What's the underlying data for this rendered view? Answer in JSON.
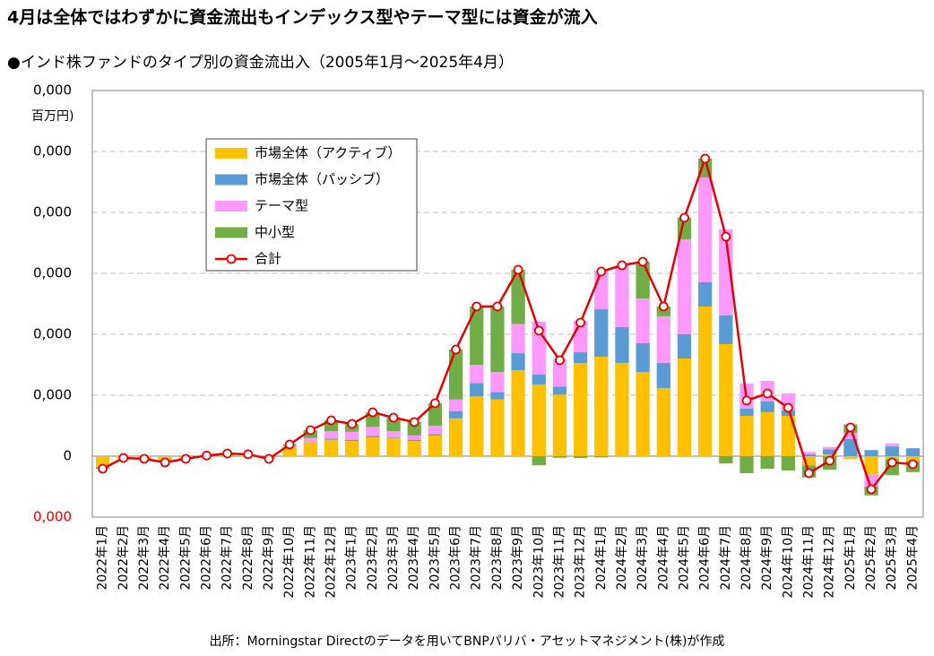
{
  "chart_data": {
    "type": "bar",
    "stacked": true,
    "title": "4月は全体ではわずかに資金流出もインデックス型やテーマ型には資金が流入",
    "subtitle": "●インド株ファンドのタイプ別の資金流出入（2005年1月～2025年4月）",
    "y_unit": "百万円)",
    "source": "出所：Morningstar Directのデータを用いてBNPパリバ・アセットマネジメント(株)が作成",
    "categories": [
      "2022年1月",
      "2022年2月",
      "2022年3月",
      "2022年4月",
      "2022年5月",
      "2022年6月",
      "2022年7月",
      "2022年8月",
      "2022年9月",
      "2022年10月",
      "2022年11月",
      "2022年12月",
      "2023年1月",
      "2023年2月",
      "2023年3月",
      "2023年4月",
      "2023年5月",
      "2023年6月",
      "2023年7月",
      "2023年8月",
      "2023年9月",
      "2023年10月",
      "2023年11月",
      "2023年12月",
      "2024年1月",
      "2024年2月",
      "2024年3月",
      "2024年4月",
      "2024年5月",
      "2024年6月",
      "2024年7月",
      "2024年8月",
      "2024年9月",
      "2024年10月",
      "2024年11月",
      "2024年12月",
      "2025年1月",
      "2025年2月",
      "2025年3月",
      "2025年4月"
    ],
    "series": [
      {
        "name": "市場全体（アクティブ）",
        "color": "#ffc000",
        "values": [
          -1800,
          -300,
          -200,
          -900,
          -300,
          100,
          400,
          300,
          -440,
          1500,
          2300,
          2700,
          2500,
          3100,
          3000,
          2500,
          3400,
          6200,
          9800,
          9300,
          14100,
          11760,
          10100,
          15290,
          16320,
          15290,
          13820,
          11180,
          16030,
          24560,
          18380,
          6620,
          7210,
          6620,
          -1500,
          300,
          -500,
          -3000,
          -500,
          -800
        ]
      },
      {
        "name": "市場全体（パッシブ）",
        "color": "#5b9bd5",
        "values": [
          0,
          0,
          0,
          0,
          0,
          0,
          0,
          0,
          0,
          0,
          0,
          200,
          200,
          200,
          100,
          200,
          200,
          1200,
          2200,
          1200,
          2800,
          1620,
          1300,
          1760,
          7790,
          5880,
          4710,
          4120,
          3970,
          3970,
          4710,
          1180,
          1760,
          880,
          300,
          800,
          2800,
          1000,
          1600,
          1300
        ]
      },
      {
        "name": "テーマ型",
        "color": "#ff99ff",
        "values": [
          0,
          0,
          0,
          0,
          0,
          0,
          0,
          0,
          0,
          200,
          700,
          1200,
          1300,
          1500,
          1000,
          700,
          1400,
          1900,
          3000,
          3300,
          4800,
          8710,
          4600,
          5160,
          6380,
          10150,
          7350,
          7650,
          15590,
          17200,
          14120,
          4120,
          3380,
          2790,
          400,
          400,
          1000,
          -2000,
          500,
          0
        ]
      },
      {
        "name": "中小型",
        "color": "#70ad47",
        "values": [
          -260,
          0,
          -240,
          -130,
          -140,
          0,
          40,
          0,
          0,
          210,
          1260,
          1800,
          1290,
          2400,
          2220,
          2190,
          3680,
          8200,
          9560,
          10760,
          8890,
          -1500,
          -260,
          -300,
          -200,
          0,
          6030,
          1610,
          3530,
          3090,
          -1200,
          -2800,
          -2060,
          -2350,
          -1990,
          -2240,
          1410,
          -1440,
          -2630,
          -1820
        ]
      },
      {
        "name": "合計",
        "color": "#e00000",
        "type": "line",
        "values": [
          -2060,
          -300,
          -440,
          -1030,
          -440,
          100,
          440,
          300,
          -440,
          1910,
          4260,
          5880,
          5290,
          7200,
          6320,
          5590,
          8680,
          17500,
          24560,
          24560,
          30590,
          20590,
          15740,
          21910,
          30290,
          31320,
          31910,
          24560,
          39120,
          48820,
          36010,
          9120,
          10290,
          7940,
          -2790,
          -740,
          4710,
          -5440,
          -1030,
          -1320
        ]
      }
    ],
    "ylim": [
      -10000,
      60000
    ],
    "yticks": [
      {
        "value": -10000,
        "label": "0,000"
      },
      0,
      {
        "value": 10000,
        "label": "0,000"
      },
      {
        "value": 20000,
        "label": "0,000"
      },
      {
        "value": 30000,
        "label": "0,000"
      },
      {
        "value": 40000,
        "label": "0,000"
      },
      {
        "value": 50000,
        "label": "0,000"
      },
      {
        "value": 60000,
        "label": "0,000"
      }
    ],
    "negative_tick_color": "#e00000",
    "grid": true
  }
}
